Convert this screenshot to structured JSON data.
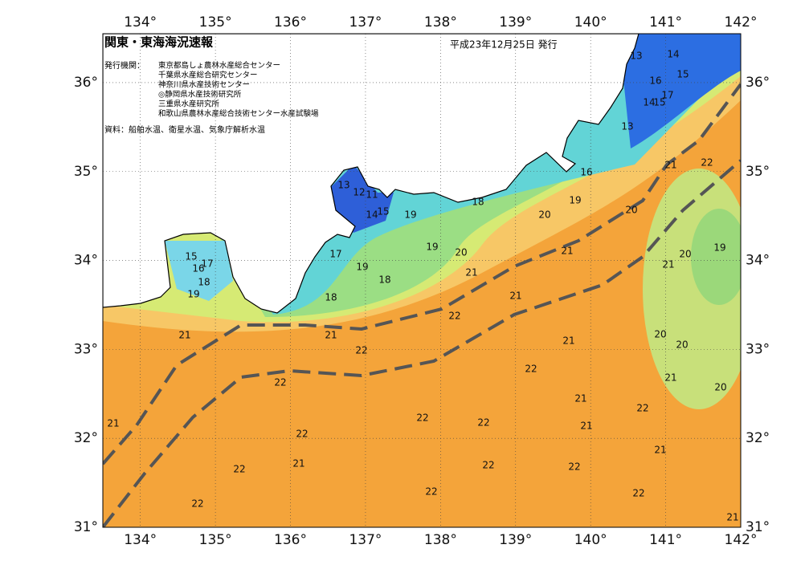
{
  "header": {
    "title": "関東・東海海況速報",
    "date": "平成23年12月25日 発行",
    "publisher_label": "発行機関：",
    "publishers": [
      "東京都島しょ農林水産総合センター",
      "千葉県水産総合研究センター",
      "神奈川県水産技術センター",
      "◎静岡県水産技術研究所",
      "三重県水産研究所",
      "和歌山県農林水産総合技術センター水産試験場"
    ],
    "sources": "資料：船舶水温、衛星水温、気象庁解析水温"
  },
  "map": {
    "xlim": [
      133.5,
      142
    ],
    "ylim": [
      31,
      36.55
    ],
    "xticks": [
      {
        "value": 134,
        "label": "134°"
      },
      {
        "value": 135,
        "label": "135°"
      },
      {
        "value": 136,
        "label": "136°"
      },
      {
        "value": 137,
        "label": "137°"
      },
      {
        "value": 138,
        "label": "138°"
      },
      {
        "value": 139,
        "label": "139°"
      },
      {
        "value": 140,
        "label": "140°"
      },
      {
        "value": 141,
        "label": "141°"
      },
      {
        "value": 142,
        "label": "142°"
      }
    ],
    "yticks": [
      {
        "value": 31,
        "label": "31°"
      },
      {
        "value": 32,
        "label": "32°"
      },
      {
        "value": 33,
        "label": "33°"
      },
      {
        "value": 34,
        "label": "34°"
      },
      {
        "value": 35,
        "label": "35°"
      },
      {
        "value": 36,
        "label": "36°"
      }
    ],
    "contour_labels": [
      13,
      14,
      15,
      16,
      17,
      14,
      15,
      13,
      16,
      21,
      22,
      13,
      12,
      11,
      14,
      15,
      19,
      18,
      19,
      20,
      20,
      19,
      17,
      19,
      20,
      21,
      20,
      21,
      19,
      21,
      18,
      15,
      16,
      17,
      18,
      19,
      18,
      21,
      22,
      21,
      21,
      22,
      21,
      20,
      20,
      22,
      21,
      22,
      20,
      21,
      22,
      21,
      22,
      22,
      21,
      22,
      21,
      21,
      22,
      22,
      22,
      22,
      22,
      22,
      21
    ]
  }
}
